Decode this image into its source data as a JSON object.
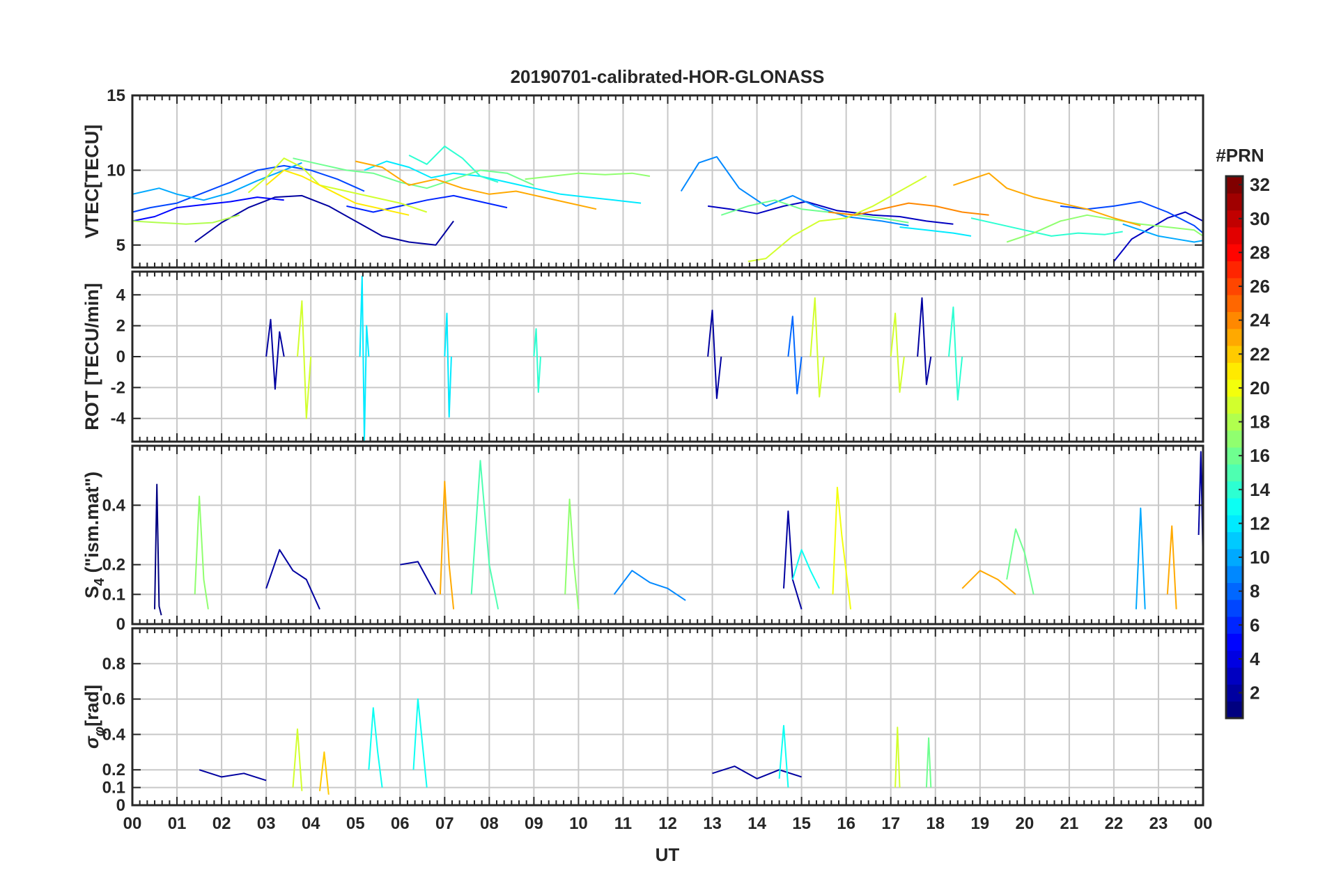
{
  "title": "20190701-calibrated-HOR-GLONASS",
  "colors": {
    "axis": "#262626",
    "grid": "#c8c8c8",
    "colormap": "jet"
  },
  "chart_data": [
    {
      "type": "line",
      "panel": "vtec",
      "ylabel": "VTEC[TECU]",
      "ylim": [
        3.5,
        15
      ],
      "yticks": [
        5,
        10,
        15
      ],
      "xlim": [
        0,
        24
      ],
      "grid": true,
      "series": [
        {
          "prn": 2,
          "x": [
            1.4,
            2.0,
            2.6,
            3.2,
            3.8,
            4.4,
            5.0,
            5.6,
            6.2,
            6.8,
            7.2
          ],
          "y": [
            5.2,
            6.5,
            7.5,
            8.2,
            8.3,
            7.6,
            6.6,
            5.6,
            5.2,
            5.0,
            6.6
          ]
        },
        {
          "prn": 3,
          "x": [
            12.9,
            13.4,
            14.0,
            14.6,
            15.1,
            15.8,
            16.6,
            17.2,
            17.8,
            18.4
          ],
          "y": [
            7.6,
            7.4,
            7.1,
            7.6,
            7.9,
            7.3,
            7.0,
            6.9,
            6.6,
            6.4
          ]
        },
        {
          "prn": 3,
          "x": [
            22.0,
            22.4,
            22.8,
            23.2,
            23.6,
            24.0
          ],
          "y": [
            3.9,
            5.4,
            6.1,
            6.8,
            7.2,
            6.6
          ]
        },
        {
          "prn": 5,
          "x": [
            0.0,
            0.5,
            1.0,
            1.6,
            2.2,
            2.8,
            3.4
          ],
          "y": [
            6.6,
            6.9,
            7.5,
            7.7,
            7.9,
            8.2,
            8.0
          ]
        },
        {
          "prn": 6,
          "x": [
            4.8,
            5.4,
            6.0,
            6.6,
            7.2,
            7.8,
            8.4
          ],
          "y": [
            7.6,
            7.2,
            7.6,
            8.0,
            8.3,
            7.9,
            7.5
          ]
        },
        {
          "prn": 7,
          "x": [
            0.0,
            0.4,
            1.0,
            1.6,
            2.2,
            2.8,
            3.4,
            4.0,
            4.6,
            5.2
          ],
          "y": [
            7.2,
            7.5,
            7.8,
            8.5,
            9.2,
            10.0,
            10.3,
            10.0,
            9.4,
            8.6
          ]
        },
        {
          "prn": 7,
          "x": [
            20.8,
            21.4,
            22.0,
            22.6,
            23.2,
            23.8,
            24.0
          ],
          "y": [
            7.6,
            7.4,
            7.6,
            7.9,
            7.2,
            6.3,
            5.8
          ]
        },
        {
          "prn": 9,
          "x": [
            12.3,
            12.7,
            13.1,
            13.6,
            14.2,
            14.8,
            15.3,
            16.0,
            16.8,
            17.4
          ],
          "y": [
            8.6,
            10.5,
            10.9,
            8.8,
            7.6,
            8.3,
            7.6,
            6.9,
            6.6,
            6.3
          ]
        },
        {
          "prn": 10,
          "x": [
            0.0,
            0.3,
            0.6,
            1.0,
            1.6,
            2.2,
            2.8,
            3.4,
            3.8
          ],
          "y": [
            8.4,
            8.6,
            8.8,
            8.4,
            8.0,
            8.5,
            9.3,
            10.0,
            10.5
          ]
        },
        {
          "prn": 10,
          "x": [
            22.2,
            22.6,
            23.0,
            23.4,
            23.8,
            24.0
          ],
          "y": [
            6.4,
            6.0,
            5.6,
            5.4,
            5.2,
            5.3
          ]
        },
        {
          "prn": 12,
          "x": [
            5.2,
            5.7,
            6.2,
            6.7,
            7.2,
            7.8,
            8.4,
            9.0,
            9.6,
            10.2,
            10.8,
            11.4
          ],
          "y": [
            10.0,
            10.6,
            10.2,
            9.5,
            9.8,
            9.6,
            9.2,
            8.8,
            8.4,
            8.2,
            8.0,
            7.8
          ]
        },
        {
          "prn": 12,
          "x": [
            17.2,
            17.8,
            18.4,
            18.8
          ],
          "y": [
            6.2,
            6.0,
            5.8,
            5.6
          ]
        },
        {
          "prn": 14,
          "x": [
            6.2,
            6.6,
            7.0,
            7.4,
            7.8,
            8.2
          ],
          "y": [
            11.0,
            10.4,
            11.6,
            10.8,
            9.6,
            9.2
          ]
        },
        {
          "prn": 14,
          "x": [
            18.8,
            19.4,
            20.0,
            20.6,
            21.2,
            21.8,
            22.2
          ],
          "y": [
            6.8,
            6.4,
            6.0,
            5.6,
            5.8,
            5.7,
            5.9
          ]
        },
        {
          "prn": 16,
          "x": [
            3.6,
            4.2,
            4.8,
            5.4,
            6.0,
            6.6,
            7.2,
            7.8,
            8.4,
            9.0
          ],
          "y": [
            10.8,
            10.4,
            10.0,
            9.8,
            9.2,
            8.8,
            9.4,
            10.0,
            9.8,
            9.0
          ]
        },
        {
          "prn": 16,
          "x": [
            13.2,
            13.8,
            14.4,
            15.0,
            15.6,
            16.2,
            16.8,
            17.4
          ],
          "y": [
            7.0,
            7.6,
            8.0,
            7.4,
            7.2,
            7.0,
            6.8,
            6.5
          ]
        },
        {
          "prn": 17,
          "x": [
            8.8,
            9.4,
            10.0,
            10.6,
            11.2,
            11.6
          ],
          "y": [
            9.4,
            9.6,
            9.8,
            9.7,
            9.8,
            9.6
          ]
        },
        {
          "prn": 17,
          "x": [
            19.6,
            20.2,
            20.8,
            21.4,
            22.0,
            22.6,
            23.2,
            23.8,
            24.0
          ],
          "y": [
            5.2,
            5.8,
            6.6,
            7.0,
            6.7,
            6.4,
            6.2,
            6.0,
            5.6
          ]
        },
        {
          "prn": 18,
          "x": [
            0.0,
            0.6,
            1.2,
            1.8,
            2.4
          ],
          "y": [
            6.6,
            6.5,
            6.4,
            6.5,
            7.0
          ]
        },
        {
          "prn": 19,
          "x": [
            2.6,
            3.0,
            3.4,
            3.8,
            4.2,
            4.8,
            5.4,
            6.0,
            6.6
          ],
          "y": [
            8.5,
            9.5,
            10.8,
            10.2,
            9.0,
            8.6,
            8.2,
            7.8,
            7.2
          ]
        },
        {
          "prn": 19,
          "x": [
            13.8,
            14.2,
            14.8,
            15.4,
            16.0,
            16.6,
            17.2,
            17.8
          ],
          "y": [
            3.9,
            4.1,
            5.6,
            6.6,
            6.8,
            7.6,
            8.6,
            9.6
          ]
        },
        {
          "prn": 21,
          "x": [
            3.0,
            3.4,
            3.8,
            4.2,
            4.6,
            5.0,
            5.6,
            6.2
          ],
          "y": [
            9.0,
            10.0,
            9.6,
            9.0,
            8.4,
            7.8,
            7.4,
            7.0
          ]
        },
        {
          "prn": 23,
          "x": [
            5.0,
            5.6,
            6.2,
            6.8,
            7.4,
            8.0,
            8.6,
            9.2,
            9.8,
            10.4
          ],
          "y": [
            10.6,
            10.2,
            9.0,
            9.4,
            8.8,
            8.4,
            8.6,
            8.2,
            7.8,
            7.4
          ]
        },
        {
          "prn": 23,
          "x": [
            18.4,
            18.8,
            19.2,
            19.6,
            20.2,
            20.8,
            21.4,
            22.0,
            22.6
          ],
          "y": [
            9.0,
            9.4,
            9.8,
            8.8,
            8.2,
            7.8,
            7.4,
            6.8,
            6.3
          ]
        },
        {
          "prn": 24,
          "x": [
            15.6,
            16.2,
            16.8,
            17.4,
            18.0,
            18.6,
            19.2
          ],
          "y": [
            7.2,
            7.0,
            7.4,
            7.8,
            7.6,
            7.2,
            7.0
          ]
        }
      ]
    },
    {
      "type": "line",
      "panel": "rot",
      "ylabel": "ROT [TECU/min]",
      "ylim": [
        -5.5,
        5.5
      ],
      "yticks": [
        -4,
        -2,
        0,
        2,
        4
      ],
      "xlim": [
        0,
        24
      ],
      "grid": true,
      "series": [
        {
          "prn": 2,
          "x": [
            3.0,
            3.1,
            3.2,
            3.3,
            3.4
          ],
          "y": [
            0.0,
            2.4,
            -2.1,
            1.6,
            0.0
          ]
        },
        {
          "prn": 2,
          "x": [
            12.9,
            13.0,
            13.1,
            13.2
          ],
          "y": [
            0.0,
            3.0,
            -2.7,
            0.0
          ]
        },
        {
          "prn": 2,
          "x": [
            17.6,
            17.7,
            17.8,
            17.9
          ],
          "y": [
            0.0,
            3.8,
            -1.8,
            0.0
          ]
        },
        {
          "prn": 8,
          "x": [
            14.7,
            14.8,
            14.9,
            15.0
          ],
          "y": [
            0.0,
            2.6,
            -2.4,
            0.0
          ]
        },
        {
          "prn": 12,
          "x": [
            5.1,
            5.15,
            5.2,
            5.25,
            5.3
          ],
          "y": [
            0.0,
            5.2,
            -5.4,
            2.0,
            0.0
          ]
        },
        {
          "prn": 12,
          "x": [
            7.0,
            7.05,
            7.1,
            7.15
          ],
          "y": [
            0.0,
            2.8,
            -3.9,
            0.0
          ]
        },
        {
          "prn": 14,
          "x": [
            9.0,
            9.05,
            9.1,
            9.15
          ],
          "y": [
            0.0,
            1.8,
            -2.3,
            0.0
          ]
        },
        {
          "prn": 14,
          "x": [
            18.3,
            18.4,
            18.5,
            18.6
          ],
          "y": [
            0.0,
            3.2,
            -2.8,
            0.0
          ]
        },
        {
          "prn": 19,
          "x": [
            3.7,
            3.8,
            3.9,
            4.0
          ],
          "y": [
            0.0,
            3.6,
            -4.0,
            0.0
          ]
        },
        {
          "prn": 19,
          "x": [
            15.2,
            15.3,
            15.4,
            15.5
          ],
          "y": [
            0.0,
            3.8,
            -2.6,
            0.0
          ]
        },
        {
          "prn": 19,
          "x": [
            17.0,
            17.1,
            17.2,
            17.3
          ],
          "y": [
            0.0,
            2.8,
            -2.3,
            0.0
          ]
        }
      ]
    },
    {
      "type": "line",
      "panel": "s4",
      "ylabel": "S_4 (\"ism.mat\")",
      "ylim": [
        0,
        0.6
      ],
      "yticks": [
        0,
        0.1,
        0.2,
        0.4
      ],
      "xlim": [
        0,
        24
      ],
      "grid": true,
      "series": [
        {
          "prn": 1,
          "x": [
            0.5,
            0.55,
            0.6,
            0.65
          ],
          "y": [
            0.05,
            0.47,
            0.06,
            0.03
          ]
        },
        {
          "prn": 2,
          "x": [
            3.0,
            3.3,
            3.6,
            3.9,
            4.2
          ],
          "y": [
            0.12,
            0.25,
            0.18,
            0.15,
            0.05
          ]
        },
        {
          "prn": 2,
          "x": [
            6.0,
            6.4,
            6.8
          ],
          "y": [
            0.2,
            0.21,
            0.1
          ]
        },
        {
          "prn": 2,
          "x": [
            14.6,
            14.7,
            14.8,
            15.0
          ],
          "y": [
            0.12,
            0.38,
            0.15,
            0.05
          ]
        },
        {
          "prn": 2,
          "x": [
            23.9,
            23.95,
            24.0
          ],
          "y": [
            0.3,
            0.58,
            0.2
          ]
        },
        {
          "prn": 9,
          "x": [
            10.8,
            11.2,
            11.6,
            12.0,
            12.4
          ],
          "y": [
            0.1,
            0.18,
            0.14,
            0.12,
            0.08
          ]
        },
        {
          "prn": 10,
          "x": [
            22.5,
            22.6,
            22.7
          ],
          "y": [
            0.05,
            0.39,
            0.05
          ]
        },
        {
          "prn": 13,
          "x": [
            14.8,
            15.0,
            15.2,
            15.4
          ],
          "y": [
            0.15,
            0.25,
            0.18,
            0.12
          ]
        },
        {
          "prn": 15,
          "x": [
            7.6,
            7.8,
            8.0,
            8.2
          ],
          "y": [
            0.1,
            0.55,
            0.2,
            0.05
          ]
        },
        {
          "prn": 16,
          "x": [
            19.6,
            19.8,
            20.0,
            20.2
          ],
          "y": [
            0.15,
            0.32,
            0.24,
            0.1
          ]
        },
        {
          "prn": 17,
          "x": [
            1.4,
            1.5,
            1.6,
            1.7
          ],
          "y": [
            0.1,
            0.43,
            0.15,
            0.05
          ]
        },
        {
          "prn": 17,
          "x": [
            9.7,
            9.8,
            9.9,
            10.0
          ],
          "y": [
            0.1,
            0.42,
            0.2,
            0.05
          ]
        },
        {
          "prn": 20,
          "x": [
            15.7,
            15.8,
            15.9,
            16.1
          ],
          "y": [
            0.1,
            0.46,
            0.3,
            0.05
          ]
        },
        {
          "prn": 23,
          "x": [
            6.9,
            7.0,
            7.1,
            7.2
          ],
          "y": [
            0.1,
            0.48,
            0.2,
            0.05
          ]
        },
        {
          "prn": 23,
          "x": [
            18.6,
            19.0,
            19.4,
            19.8
          ],
          "y": [
            0.12,
            0.18,
            0.15,
            0.1
          ]
        },
        {
          "prn": 23,
          "x": [
            23.2,
            23.3,
            23.4
          ],
          "y": [
            0.1,
            0.33,
            0.05
          ]
        }
      ]
    },
    {
      "type": "line",
      "panel": "sigma_phi",
      "ylabel": "σ_φ[rad]",
      "ylim": [
        0,
        1
      ],
      "yticks": [
        0,
        0.1,
        0.2,
        0.4,
        0.6,
        0.8
      ],
      "xlim": [
        0,
        24
      ],
      "grid": true,
      "series": [
        {
          "prn": 2,
          "x": [
            1.5,
            2.0,
            2.5,
            3.0
          ],
          "y": [
            0.2,
            0.16,
            0.18,
            0.14
          ]
        },
        {
          "prn": 2,
          "x": [
            13.0,
            13.5,
            14.0,
            14.5,
            15.0
          ],
          "y": [
            0.18,
            0.22,
            0.15,
            0.2,
            0.16
          ]
        },
        {
          "prn": 13,
          "x": [
            5.3,
            5.4,
            5.5,
            5.6
          ],
          "y": [
            0.2,
            0.55,
            0.3,
            0.1
          ]
        },
        {
          "prn": 13,
          "x": [
            6.3,
            6.4,
            6.5,
            6.6
          ],
          "y": [
            0.2,
            0.6,
            0.35,
            0.1
          ]
        },
        {
          "prn": 13,
          "x": [
            14.5,
            14.6,
            14.7
          ],
          "y": [
            0.15,
            0.45,
            0.1
          ]
        },
        {
          "prn": 16,
          "x": [
            17.8,
            17.85,
            17.9
          ],
          "y": [
            0.1,
            0.38,
            0.1
          ]
        },
        {
          "prn": 19,
          "x": [
            3.6,
            3.7,
            3.8
          ],
          "y": [
            0.1,
            0.43,
            0.08
          ]
        },
        {
          "prn": 19,
          "x": [
            17.1,
            17.15,
            17.2
          ],
          "y": [
            0.1,
            0.44,
            0.1
          ]
        },
        {
          "prn": 22,
          "x": [
            4.2,
            4.3,
            4.4
          ],
          "y": [
            0.08,
            0.3,
            0.06
          ]
        }
      ]
    }
  ],
  "xaxis": {
    "label": "UT",
    "ticks": [
      "00",
      "01",
      "02",
      "03",
      "04",
      "05",
      "06",
      "07",
      "08",
      "09",
      "10",
      "11",
      "12",
      "13",
      "14",
      "15",
      "16",
      "17",
      "18",
      "19",
      "20",
      "21",
      "22",
      "23",
      "00"
    ]
  },
  "colorbar": {
    "label": "#PRN",
    "range": [
      1,
      32
    ],
    "ticks": [
      "2",
      "4",
      "6",
      "8",
      "10",
      "12",
      "14",
      "16",
      "18",
      "20",
      "22",
      "24",
      "26",
      "28",
      "30",
      "32"
    ]
  }
}
